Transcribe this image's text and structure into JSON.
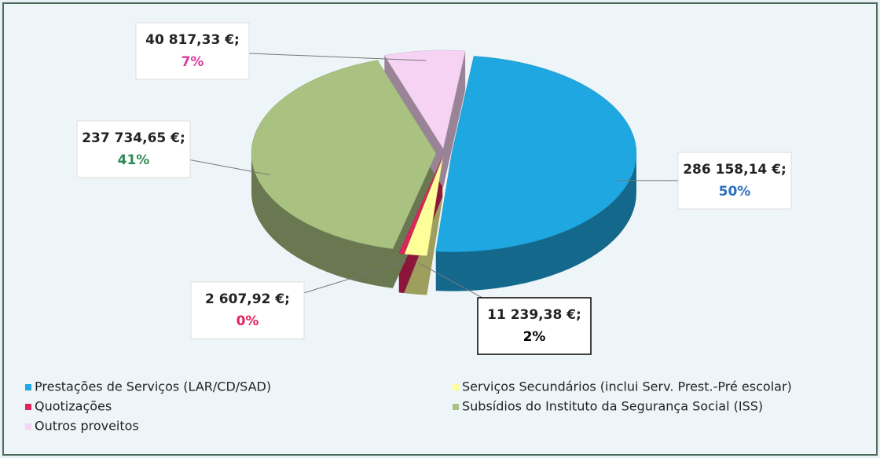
{
  "chart_data": {
    "type": "pie",
    "categories": [
      "Prestações de Serviços (LAR/CD/SAD)",
      "Serviços Secundários (inclui Serv. Prest.-Pré escolar)",
      "Quotizações",
      "Subsídios do Instituto da Segurança Social (ISS)",
      "Outros proveitos"
    ],
    "values": [
      286158.14,
      11239.38,
      2607.92,
      237734.65,
      40817.33
    ],
    "value_labels": [
      "286 158,14 €;",
      "11 239,38 €;",
      "2 607,92 €;",
      "237 734,65 €;",
      "40 817,33 €;"
    ],
    "percents": [
      50,
      2,
      0,
      41,
      7
    ],
    "percent_labels": [
      "50%",
      "2%",
      "0%",
      "41%",
      "7%"
    ],
    "colors": [
      "#1ea7e1",
      "#ffff99",
      "#e0245e",
      "#a9c281",
      "#f6d3f3"
    ],
    "legend": "bottom"
  }
}
